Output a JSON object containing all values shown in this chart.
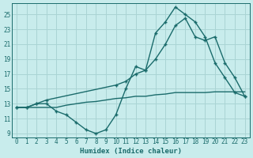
{
  "xlabel": "Humidex (Indice chaleur)",
  "bg_color": "#c8ecec",
  "grid_color": "#aad4d4",
  "line_color": "#1a6b6b",
  "xlim": [
    -0.5,
    23.5
  ],
  "ylim": [
    8.5,
    26.5
  ],
  "xticks": [
    0,
    1,
    2,
    3,
    4,
    5,
    6,
    7,
    8,
    9,
    10,
    11,
    12,
    13,
    14,
    15,
    16,
    17,
    18,
    19,
    20,
    21,
    22,
    23
  ],
  "yticks": [
    9,
    11,
    13,
    15,
    17,
    19,
    21,
    23,
    25
  ],
  "line1_x": [
    0,
    1,
    2,
    3,
    4,
    5,
    6,
    7,
    8,
    9,
    10,
    11,
    12,
    13,
    14,
    15,
    16,
    17,
    18,
    19,
    20,
    21,
    22,
    23
  ],
  "line1_y": [
    12.5,
    12.5,
    13.0,
    13.0,
    12.0,
    11.5,
    10.5,
    9.5,
    9.0,
    9.5,
    11.5,
    15.0,
    18.0,
    17.5,
    22.5,
    24.0,
    26.0,
    25.0,
    24.0,
    22.0,
    18.5,
    16.5,
    14.5,
    14.0
  ],
  "line2_x": [
    0,
    1,
    2,
    3,
    4,
    5,
    6,
    7,
    8,
    9,
    10,
    11,
    12,
    13,
    14,
    15,
    16,
    17,
    18,
    19,
    20,
    21,
    22,
    23
  ],
  "line2_y": [
    12.5,
    12.5,
    12.5,
    12.5,
    12.5,
    12.8,
    13.0,
    13.2,
    13.3,
    13.5,
    13.7,
    13.8,
    14.0,
    14.0,
    14.2,
    14.3,
    14.5,
    14.5,
    14.5,
    14.5,
    14.6,
    14.6,
    14.6,
    14.6
  ],
  "line3_x": [
    0,
    1,
    2,
    3,
    10,
    11,
    12,
    13,
    14,
    15,
    16,
    17,
    18,
    19,
    20,
    21,
    22,
    23
  ],
  "line3_y": [
    12.5,
    12.5,
    13.0,
    13.5,
    15.5,
    16.0,
    17.0,
    17.5,
    19.0,
    21.0,
    23.5,
    24.5,
    22.0,
    21.5,
    22.0,
    18.5,
    16.5,
    14.0
  ]
}
